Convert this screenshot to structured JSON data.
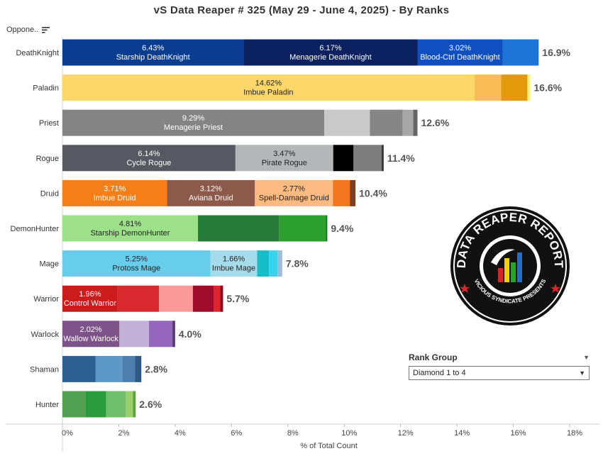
{
  "header": {
    "title": "vS Data Reaper #  325 (May 29 - June 4, 2025) - By Ranks",
    "opponent_label": "Oppone.."
  },
  "filter": {
    "title": "Rank Group",
    "selected": "Diamond 1 to 4"
  },
  "chart_data": {
    "type": "bar",
    "orientation": "horizontal",
    "stacked": true,
    "xlabel": "% of Total Count",
    "xlim": [
      0,
      18
    ],
    "xticks": [
      "0%",
      "2%",
      "4%",
      "6%",
      "8%",
      "10%",
      "12%",
      "14%",
      "16%",
      "18%"
    ],
    "grid": false,
    "rows": [
      {
        "label": "DeathKnight",
        "total": "16.9%",
        "segments": [
          {
            "value": 6.43,
            "color": "#0a3d8f",
            "value_label": "6.43%",
            "name": "Starship DeathKnight"
          },
          {
            "value": 6.17,
            "color": "#0b2160",
            "value_label": "6.17%",
            "name": "Menagerie DeathKnight"
          },
          {
            "value": 3.02,
            "color": "#0f4fc0",
            "value_label": "3.02%",
            "name": "Blood-Ctrl DeathKnight"
          },
          {
            "value": 1.28,
            "color": "#1b74d6"
          }
        ]
      },
      {
        "label": "Paladin",
        "total": "16.6%",
        "segments": [
          {
            "value": 14.62,
            "color": "#fdd76a",
            "value_label": "14.62%",
            "name": "Imbue Paladin",
            "dark": true
          },
          {
            "value": 0.95,
            "color": "#fbbb56"
          },
          {
            "value": 0.93,
            "color": "#e59b09"
          },
          {
            "value": 0.1,
            "color": "#fff27a"
          }
        ]
      },
      {
        "label": "Priest",
        "total": "12.6%",
        "segments": [
          {
            "value": 9.29,
            "color": "#848484",
            "value_label": "9.29%",
            "name": "Menagerie Priest"
          },
          {
            "value": 1.62,
            "color": "#c9c9c9"
          },
          {
            "value": 1.16,
            "color": "#858585"
          },
          {
            "value": 0.38,
            "color": "#a7a7a7"
          },
          {
            "value": 0.15,
            "color": "#666666"
          }
        ]
      },
      {
        "label": "Rogue",
        "total": "11.4%",
        "segments": [
          {
            "value": 6.14,
            "color": "#565962",
            "value_label": "6.14%",
            "name": "Cycle Rogue"
          },
          {
            "value": 3.47,
            "color": "#b4b6b8",
            "value_label": "3.47%",
            "name": "Pirate Rogue",
            "dark": true
          },
          {
            "value": 0.72,
            "color": "#000000"
          },
          {
            "value": 1.0,
            "color": "#7d7d7d"
          },
          {
            "value": 0.07,
            "color": "#333333"
          }
        ]
      },
      {
        "label": "Druid",
        "total": "10.4%",
        "segments": [
          {
            "value": 3.71,
            "color": "#f57e16",
            "value_label": "3.71%",
            "name": "Imbue Druid"
          },
          {
            "value": 3.12,
            "color": "#8c5a4a",
            "value_label": "3.12%",
            "name": "Aviana Druid"
          },
          {
            "value": 2.77,
            "color": "#fdbb81",
            "value_label": "2.77%",
            "name": "Spell-Damage Druid",
            "dark": true
          },
          {
            "value": 0.6,
            "color": "#f4761c"
          },
          {
            "value": 0.2,
            "color": "#7a3f25"
          }
        ]
      },
      {
        "label": "DemonHunter",
        "total": "9.4%",
        "segments": [
          {
            "value": 4.81,
            "color": "#9ce08a",
            "value_label": "4.81%",
            "name": "Starship DemonHunter",
            "dark": true
          },
          {
            "value": 2.87,
            "color": "#267a3a"
          },
          {
            "value": 1.67,
            "color": "#2ca02c"
          },
          {
            "value": 0.05,
            "color": "#1a6b2a"
          }
        ]
      },
      {
        "label": "Mage",
        "total": "7.8%",
        "segments": [
          {
            "value": 5.25,
            "color": "#66cdeb",
            "value_label": "5.25%",
            "name": "Protoss Mage",
            "dark": true
          },
          {
            "value": 1.66,
            "color": "#a4dceb",
            "value_label": "1.66%",
            "name": "Imbue Mage",
            "dark": true
          },
          {
            "value": 0.42,
            "color": "#17bec9"
          },
          {
            "value": 0.3,
            "color": "#38d3ee"
          },
          {
            "value": 0.17,
            "color": "#9bbfd7"
          }
        ]
      },
      {
        "label": "Warrior",
        "total": "5.7%",
        "segments": [
          {
            "value": 1.96,
            "color": "#cc1b1b",
            "value_label": "1.96%",
            "name": "Control Warrior"
          },
          {
            "value": 1.47,
            "color": "#d9292f"
          },
          {
            "value": 1.2,
            "color": "#fb9999"
          },
          {
            "value": 0.75,
            "color": "#a00b2a"
          },
          {
            "value": 0.22,
            "color": "#e0242b"
          },
          {
            "value": 0.1,
            "color": "#8a0b1e"
          }
        ]
      },
      {
        "label": "Warlock",
        "total": "4.0%",
        "segments": [
          {
            "value": 2.02,
            "color": "#7e5389",
            "value_label": "2.02%",
            "name": "Wallow Warlock"
          },
          {
            "value": 1.05,
            "color": "#c3b0d6"
          },
          {
            "value": 0.83,
            "color": "#9467bd"
          },
          {
            "value": 0.1,
            "color": "#5c3b70"
          }
        ]
      },
      {
        "label": "Shaman",
        "total": "2.8%",
        "segments": [
          {
            "value": 1.18,
            "color": "#2c5f92"
          },
          {
            "value": 0.95,
            "color": "#5b97c7"
          },
          {
            "value": 0.45,
            "color": "#4d7fae"
          },
          {
            "value": 0.22,
            "color": "#2e5a85"
          }
        ]
      },
      {
        "label": "Hunter",
        "total": "2.6%",
        "segments": [
          {
            "value": 0.82,
            "color": "#52a152"
          },
          {
            "value": 0.73,
            "color": "#2a9c3b"
          },
          {
            "value": 0.69,
            "color": "#6fbf6a"
          },
          {
            "value": 0.26,
            "color": "#9ccf6a"
          },
          {
            "value": 0.1,
            "color": "#58a63a"
          }
        ]
      }
    ]
  },
  "logo": {
    "text_top": "DATA REAPER REPORT",
    "text_bottom": "VICIOUS SYNDICATE PRESENTS",
    "colors": [
      "#d62728",
      "#f5d000",
      "#2ca02c",
      "#1f6fd1"
    ]
  }
}
